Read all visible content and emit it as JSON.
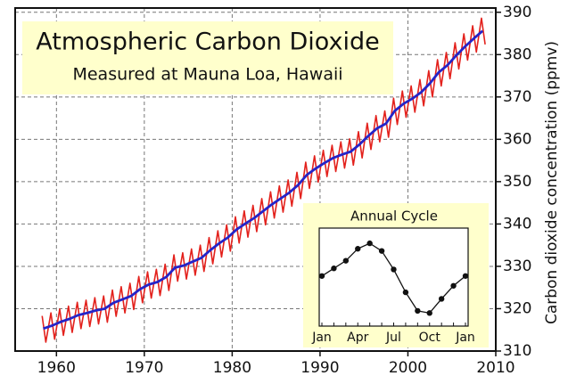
{
  "chart_data": [
    {
      "type": "line",
      "title": "Atmospheric Carbon Dioxide",
      "subtitle": "Measured at Mauna Loa, Hawaii",
      "y_label": "Carbon dioxide concentration (ppmv)",
      "xlim": [
        1955.3,
        2010
      ],
      "xticks": [
        1960,
        1970,
        1980,
        1990,
        2000,
        2010
      ],
      "ylim": [
        310,
        391
      ],
      "yticks": [
        310,
        320,
        330,
        340,
        350,
        360,
        370,
        380,
        390
      ],
      "grid": true,
      "series": [
        {
          "color": "#e3211c",
          "x": [
            1958.37,
            1958.79,
            1959.37,
            1959.79,
            1960.37,
            1960.79,
            1961.37,
            1961.79,
            1962.37,
            1962.79,
            1963.37,
            1963.79,
            1964.37,
            1964.79,
            1965.37,
            1965.79,
            1966.37,
            1966.79,
            1967.37,
            1967.79,
            1968.37,
            1968.79,
            1969.37,
            1969.79,
            1970.37,
            1970.79,
            1971.37,
            1971.79,
            1972.37,
            1972.79,
            1973.37,
            1973.79,
            1974.37,
            1974.79,
            1975.37,
            1975.79,
            1976.37,
            1976.79,
            1977.37,
            1977.79,
            1978.37,
            1978.79,
            1979.37,
            1979.79,
            1980.37,
            1980.79,
            1981.37,
            1981.79,
            1982.37,
            1982.79,
            1983.37,
            1983.79,
            1984.37,
            1984.79,
            1985.37,
            1985.79,
            1986.37,
            1986.79,
            1987.37,
            1987.79,
            1988.37,
            1988.79,
            1989.37,
            1989.79,
            1990.37,
            1990.79,
            1991.37,
            1991.79,
            1992.37,
            1992.79,
            1993.37,
            1993.79,
            1994.37,
            1994.79,
            1995.37,
            1995.79,
            1996.37,
            1996.79,
            1997.37,
            1997.79,
            1998.37,
            1998.79,
            1999.37,
            1999.79,
            2000.37,
            2000.79,
            2001.37,
            2001.79,
            2002.37,
            2002.79,
            2003.37,
            2003.79,
            2004.37,
            2004.79,
            2005.37,
            2005.79,
            2006.37,
            2006.79,
            2007.37,
            2007.79,
            2008.37,
            2008.79
          ],
          "values": [
            318.3,
            312.1,
            319.0,
            312.8,
            319.9,
            313.7,
            320.6,
            314.4,
            321.5,
            315.3,
            322.0,
            315.8,
            322.6,
            316.4,
            323.0,
            316.8,
            324.4,
            318.2,
            325.2,
            319.0,
            326.0,
            319.8,
            327.6,
            321.4,
            328.7,
            322.5,
            329.3,
            323.1,
            330.5,
            324.3,
            332.7,
            326.5,
            333.2,
            327.0,
            334.1,
            327.9,
            335.0,
            328.8,
            336.8,
            330.6,
            338.4,
            332.2,
            339.8,
            333.6,
            341.7,
            335.5,
            343.1,
            336.9,
            344.4,
            338.2,
            346.0,
            339.8,
            347.6,
            341.4,
            349.0,
            342.8,
            350.4,
            344.2,
            352.2,
            346.0,
            354.6,
            348.4,
            356.1,
            349.9,
            357.4,
            351.2,
            358.6,
            352.4,
            359.4,
            353.2,
            360.1,
            353.9,
            361.8,
            355.6,
            363.8,
            357.6,
            365.6,
            359.4,
            366.7,
            360.5,
            369.7,
            363.5,
            371.4,
            365.2,
            372.6,
            366.4,
            374.1,
            367.9,
            376.2,
            370.0,
            378.8,
            372.6,
            380.5,
            374.3,
            382.8,
            376.6,
            384.9,
            378.7,
            386.8,
            380.6,
            388.6,
            382.4
          ]
        },
        {
          "color": "#2424c8",
          "x": [
            1958.5,
            1959.5,
            1960.5,
            1961.5,
            1962.5,
            1963.5,
            1964.5,
            1965.5,
            1966.5,
            1967.5,
            1968.5,
            1969.5,
            1970.5,
            1971.5,
            1972.5,
            1973.5,
            1974.5,
            1975.5,
            1976.5,
            1977.5,
            1978.5,
            1979.5,
            1980.5,
            1981.5,
            1982.5,
            1983.5,
            1984.5,
            1985.5,
            1986.5,
            1987.5,
            1988.5,
            1989.5,
            1990.5,
            1991.5,
            1992.5,
            1993.5,
            1994.5,
            1995.5,
            1996.5,
            1997.5,
            1998.5,
            1999.5,
            2000.5,
            2001.5,
            2002.5,
            2003.5,
            2004.5,
            2005.5,
            2006.5,
            2007.5,
            2008.5
          ],
          "values": [
            315.3,
            316.0,
            316.9,
            317.6,
            318.5,
            319.0,
            319.6,
            320.0,
            321.4,
            322.2,
            323.0,
            324.6,
            325.7,
            326.3,
            327.5,
            329.7,
            330.2,
            331.1,
            332.0,
            333.8,
            335.4,
            336.8,
            338.7,
            340.1,
            341.4,
            343.0,
            344.6,
            346.0,
            347.4,
            349.2,
            351.6,
            353.1,
            354.4,
            355.6,
            356.4,
            357.1,
            358.8,
            360.8,
            362.6,
            363.7,
            366.7,
            368.4,
            369.6,
            371.1,
            373.2,
            375.8,
            377.5,
            379.8,
            381.9,
            383.8,
            385.6
          ]
        }
      ]
    },
    {
      "type": "line",
      "title": "Annual Cycle",
      "categories": [
        "Jan",
        null,
        null,
        "Apr",
        null,
        null,
        "Jul",
        null,
        null,
        "Oct",
        null,
        null,
        "Jan"
      ],
      "values": [
        0.1,
        0.8,
        1.5,
        2.6,
        3.1,
        2.4,
        0.7,
        -1.4,
        -3.1,
        -3.3,
        -2.0,
        -0.8,
        0.1
      ],
      "ylim": [
        -4.5,
        4.5
      ],
      "color": "#111111"
    }
  ]
}
